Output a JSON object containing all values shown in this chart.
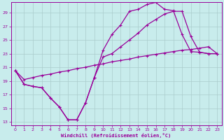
{
  "xlabel": "Windchill (Refroidissement éolien,°C)",
  "bg_color": "#c8ecec",
  "line_color": "#990099",
  "grid_color": "#aacccc",
  "xlim": [
    -0.5,
    23.5
  ],
  "ylim": [
    12.5,
    30.5
  ],
  "xticks": [
    0,
    1,
    2,
    3,
    4,
    5,
    6,
    7,
    8,
    9,
    10,
    11,
    12,
    13,
    14,
    15,
    16,
    17,
    18,
    19,
    20,
    21,
    22,
    23
  ],
  "yticks": [
    13,
    15,
    17,
    19,
    21,
    23,
    25,
    27,
    29
  ],
  "line1_x": [
    0,
    1,
    2,
    3,
    4,
    5,
    6,
    7,
    8,
    9,
    10,
    11,
    12,
    13,
    14,
    15,
    16,
    17,
    18,
    19,
    20,
    21,
    22,
    23
  ],
  "line1_y": [
    20.5,
    18.5,
    18.2,
    18.0,
    16.5,
    15.2,
    13.3,
    13.3,
    15.8,
    19.5,
    23.5,
    25.8,
    27.2,
    29.2,
    29.5,
    30.2,
    30.5,
    29.5,
    29.3,
    25.8,
    23.3,
    23.2,
    23.0,
    23.0
  ],
  "line2_x": [
    0,
    1,
    2,
    3,
    4,
    5,
    6,
    7,
    8,
    9,
    10,
    11,
    12,
    13,
    14,
    15,
    16,
    17,
    18,
    19,
    20,
    21,
    22,
    23
  ],
  "line2_y": [
    20.5,
    18.5,
    18.2,
    18.0,
    16.5,
    15.2,
    13.3,
    13.3,
    15.8,
    19.5,
    22.5,
    23.0,
    24.0,
    25.0,
    26.0,
    27.2,
    28.0,
    28.8,
    29.2,
    29.2,
    25.5,
    23.2,
    23.0,
    23.0
  ],
  "line3_x": [
    0,
    1,
    2,
    3,
    4,
    5,
    6,
    7,
    8,
    9,
    10,
    11,
    12,
    13,
    14,
    15,
    16,
    17,
    18,
    19,
    20,
    21,
    22,
    23
  ],
  "line3_y": [
    20.5,
    19.2,
    19.5,
    19.8,
    20.0,
    20.3,
    20.5,
    20.8,
    21.0,
    21.3,
    21.5,
    21.8,
    22.0,
    22.2,
    22.5,
    22.7,
    22.9,
    23.1,
    23.3,
    23.5,
    23.6,
    23.8,
    24.0,
    23.0
  ]
}
